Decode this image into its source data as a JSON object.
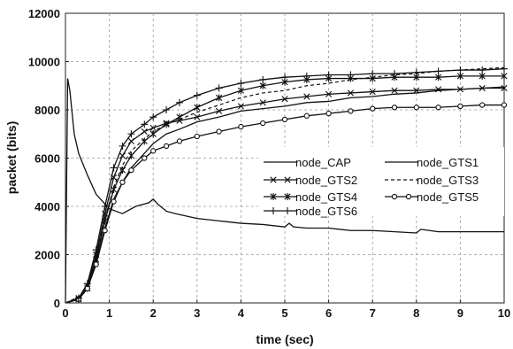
{
  "chart_data": {
    "type": "line",
    "title": "",
    "xlabel": "time (sec)",
    "ylabel": "packet (bits)",
    "xlim": [
      0,
      10
    ],
    "ylim": [
      0,
      12000
    ],
    "xticks": [
      0,
      1,
      2,
      3,
      4,
      5,
      6,
      7,
      8,
      9,
      10
    ],
    "yticks": [
      0,
      2000,
      4000,
      6000,
      8000,
      10000,
      12000
    ],
    "grid": "dashed",
    "legend_position": "center-right",
    "series": [
      {
        "name": "node_CAP",
        "style": "solid",
        "marker": "none",
        "x": [
          0,
          0.05,
          0.1,
          0.2,
          0.3,
          0.5,
          0.7,
          1.0,
          1.3,
          1.6,
          1.9,
          2.0,
          2.1,
          2.3,
          2.5,
          3.0,
          3.5,
          4.0,
          4.5,
          5.0,
          5.1,
          5.2,
          5.5,
          6.0,
          6.5,
          7.0,
          7.5,
          8.0,
          8.1,
          8.5,
          9.0,
          9.5,
          10.0
        ],
        "values": [
          0,
          9300,
          8800,
          7000,
          6200,
          5300,
          4500,
          3900,
          3700,
          4000,
          4150,
          4300,
          4100,
          3800,
          3700,
          3500,
          3400,
          3300,
          3250,
          3150,
          3300,
          3150,
          3100,
          3100,
          3000,
          3000,
          2950,
          2900,
          3050,
          2950,
          2950,
          2950,
          2950
        ]
      },
      {
        "name": "node_GTS1",
        "style": "solid",
        "marker": "none",
        "x": [
          0,
          0.3,
          0.5,
          0.7,
          0.9,
          1.1,
          1.3,
          1.5,
          1.8,
          2.0,
          2.3,
          2.6,
          3.0,
          3.5,
          4.0,
          4.5,
          5.0,
          5.5,
          6.0,
          6.5,
          7.0,
          7.5,
          8.0,
          8.5,
          9.0,
          9.5,
          10.0
        ],
        "values": [
          0,
          150,
          600,
          1700,
          3100,
          4300,
          5000,
          5600,
          6200,
          6600,
          7000,
          7200,
          7500,
          7700,
          7950,
          8050,
          8150,
          8300,
          8350,
          8500,
          8550,
          8650,
          8700,
          8800,
          8850,
          8900,
          8950
        ]
      },
      {
        "name": "node_GTS2",
        "style": "solid",
        "marker": "x",
        "x": [
          0,
          0.3,
          0.5,
          0.7,
          0.9,
          1.1,
          1.3,
          1.5,
          1.8,
          2.0,
          2.3,
          2.6,
          3.0,
          3.5,
          4.0,
          4.5,
          5.0,
          5.5,
          6.0,
          6.5,
          7.0,
          7.5,
          8.0,
          8.5,
          9.0,
          9.5,
          10.0
        ],
        "values": [
          0,
          200,
          700,
          2000,
          3700,
          5200,
          6100,
          6700,
          7100,
          7250,
          7450,
          7550,
          7700,
          7950,
          8150,
          8300,
          8450,
          8550,
          8650,
          8700,
          8750,
          8800,
          8800,
          8850,
          8850,
          8900,
          8900
        ]
      },
      {
        "name": "node_GTS3",
        "style": "dashed",
        "marker": "none",
        "x": [
          0,
          0.3,
          0.5,
          0.7,
          0.9,
          1.1,
          1.3,
          1.5,
          1.8,
          2.0,
          2.3,
          2.6,
          3.0,
          3.5,
          4.0,
          4.5,
          5.0,
          5.5,
          6.0,
          6.5,
          7.0,
          7.5,
          8.0,
          8.5,
          9.0,
          9.5,
          10.0
        ],
        "values": [
          0,
          250,
          700,
          1900,
          3500,
          4800,
          5700,
          6300,
          6800,
          7100,
          7400,
          7600,
          7900,
          8200,
          8500,
          8700,
          8800,
          9000,
          9100,
          9250,
          9350,
          9450,
          9500,
          9600,
          9650,
          9700,
          9750
        ]
      },
      {
        "name": "node_GTS4",
        "style": "solid",
        "marker": "asterisk",
        "x": [
          0,
          0.3,
          0.5,
          0.7,
          0.9,
          1.1,
          1.3,
          1.5,
          1.8,
          2.0,
          2.3,
          2.6,
          3.0,
          3.5,
          4.0,
          4.5,
          5.0,
          5.5,
          6.0,
          6.5,
          7.0,
          7.5,
          8.0,
          8.5,
          9.0,
          9.5,
          10.0
        ],
        "values": [
          0,
          150,
          600,
          1800,
          3400,
          4700,
          5500,
          6100,
          6700,
          7000,
          7400,
          7700,
          8100,
          8500,
          8800,
          9000,
          9150,
          9250,
          9300,
          9300,
          9300,
          9350,
          9350,
          9350,
          9400,
          9400,
          9400
        ]
      },
      {
        "name": "node_GTS5",
        "style": "solid",
        "marker": "circle",
        "x": [
          0,
          0.3,
          0.5,
          0.7,
          0.9,
          1.1,
          1.3,
          1.5,
          1.8,
          2.0,
          2.3,
          2.6,
          3.0,
          3.5,
          4.0,
          4.5,
          5.0,
          5.5,
          6.0,
          6.5,
          7.0,
          7.5,
          8.0,
          8.5,
          9.0,
          9.5,
          10.0
        ],
        "values": [
          0,
          150,
          600,
          1600,
          3000,
          4200,
          5000,
          5500,
          6000,
          6300,
          6500,
          6700,
          6900,
          7100,
          7300,
          7450,
          7600,
          7750,
          7850,
          7950,
          8050,
          8100,
          8100,
          8100,
          8150,
          8200,
          8200
        ]
      },
      {
        "name": "node_GTS6",
        "style": "solid",
        "marker": "plus",
        "x": [
          0,
          0.3,
          0.5,
          0.7,
          0.9,
          1.1,
          1.3,
          1.5,
          1.8,
          2.0,
          2.3,
          2.6,
          3.0,
          3.5,
          4.0,
          4.5,
          5.0,
          5.5,
          6.0,
          6.5,
          7.0,
          7.5,
          8.0,
          8.5,
          9.0,
          9.5,
          10.0
        ],
        "values": [
          0,
          200,
          800,
          2200,
          4000,
          5600,
          6500,
          7000,
          7400,
          7700,
          8000,
          8300,
          8600,
          8900,
          9100,
          9250,
          9350,
          9400,
          9450,
          9450,
          9500,
          9500,
          9550,
          9600,
          9650,
          9650,
          9700
        ]
      }
    ]
  }
}
